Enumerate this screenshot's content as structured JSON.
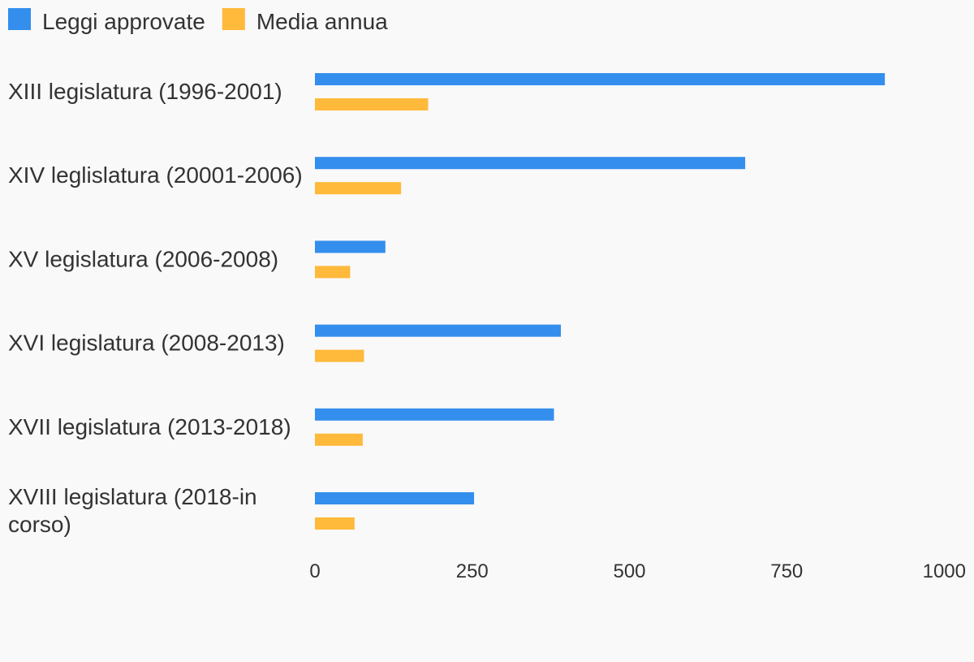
{
  "chart_data": {
    "type": "bar",
    "orientation": "horizontal",
    "categories": [
      "XIII legislatura (1996-2001)",
      "XIV leglislatura (20001-2006)",
      "XV legislatura (2006-2008)",
      "XVI legislatura (2008-2013)",
      "XVII legislatura (2013-2018)",
      "XVIII legislatura (2018-in corso)"
    ],
    "series": [
      {
        "name": "Leggi approvate",
        "color": "#348EED",
        "values": [
          906,
          684,
          112,
          391,
          380,
          253
        ]
      },
      {
        "name": "Media annua",
        "color": "#FFB93B",
        "values": [
          180,
          137,
          56,
          78,
          76,
          63
        ]
      }
    ],
    "x_ticks": [
      "0",
      "250",
      "500",
      "750",
      "1000"
    ],
    "xlim": [
      0,
      1000
    ],
    "grid": false,
    "legend_position": "top-left"
  }
}
